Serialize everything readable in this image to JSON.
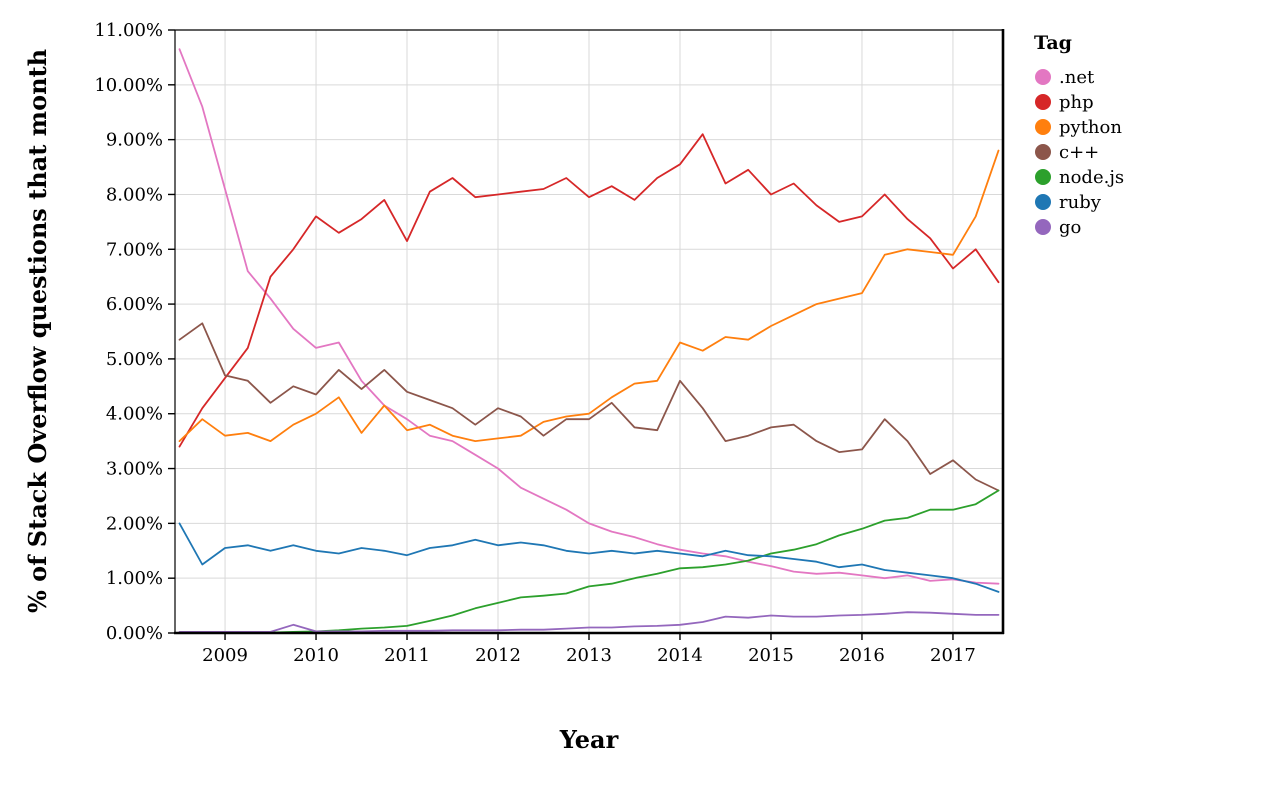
{
  "chart_data": {
    "type": "line",
    "title": "",
    "xlabel": "Year",
    "ylabel": "% of Stack Overflow questions that month",
    "legend_title": "Tag",
    "legend_position": "right",
    "grid": true,
    "xlim": [
      2008.45,
      2017.55
    ],
    "ylim": [
      0,
      11
    ],
    "x_ticks": [
      2009,
      2010,
      2011,
      2012,
      2013,
      2014,
      2015,
      2016,
      2017
    ],
    "x_tick_labels": [
      "2009",
      "2010",
      "2011",
      "2012",
      "2013",
      "2014",
      "2015",
      "2016",
      "2017"
    ],
    "y_ticks": [
      0,
      1,
      2,
      3,
      4,
      5,
      6,
      7,
      8,
      9,
      10,
      11
    ],
    "y_tick_labels": [
      "0.00%",
      "1.00%",
      "2.00%",
      "3.00%",
      "4.00%",
      "5.00%",
      "6.00%",
      "7.00%",
      "8.00%",
      "9.00%",
      "10.00%",
      "11.00%"
    ],
    "x": [
      2008.5,
      2008.75,
      2009.0,
      2009.25,
      2009.5,
      2009.75,
      2010.0,
      2010.25,
      2010.5,
      2010.75,
      2011.0,
      2011.25,
      2011.5,
      2011.75,
      2012.0,
      2012.25,
      2012.5,
      2012.75,
      2013.0,
      2013.25,
      2013.5,
      2013.75,
      2014.0,
      2014.25,
      2014.5,
      2014.75,
      2015.0,
      2015.25,
      2015.5,
      2015.75,
      2016.0,
      2016.25,
      2016.5,
      2016.75,
      2017.0,
      2017.25,
      2017.5
    ],
    "series": [
      {
        "name": ".net",
        "color": "#e377c2",
        "values": [
          10.65,
          9.6,
          8.1,
          6.6,
          6.1,
          5.55,
          5.2,
          5.3,
          4.6,
          4.15,
          3.9,
          3.6,
          3.5,
          3.25,
          3.0,
          2.65,
          2.45,
          2.25,
          2.0,
          1.85,
          1.75,
          1.62,
          1.52,
          1.45,
          1.4,
          1.3,
          1.22,
          1.12,
          1.08,
          1.1,
          1.05,
          1.0,
          1.05,
          0.95,
          0.98,
          0.92,
          0.9
        ]
      },
      {
        "name": "php",
        "color": "#d62728",
        "values": [
          3.4,
          4.1,
          4.65,
          5.2,
          6.5,
          7.0,
          7.6,
          7.3,
          7.55,
          7.9,
          7.15,
          8.05,
          8.3,
          7.95,
          8.0,
          8.05,
          8.1,
          8.3,
          7.95,
          8.15,
          7.9,
          8.3,
          8.55,
          9.1,
          8.2,
          8.45,
          8.0,
          8.2,
          7.8,
          7.5,
          7.6,
          8.0,
          7.55,
          7.2,
          6.65,
          7.0,
          6.4
        ]
      },
      {
        "name": "python",
        "color": "#ff7f0e",
        "values": [
          3.5,
          3.9,
          3.6,
          3.65,
          3.5,
          3.8,
          4.0,
          4.3,
          3.65,
          4.15,
          3.7,
          3.8,
          3.6,
          3.5,
          3.55,
          3.6,
          3.85,
          3.95,
          4.0,
          4.3,
          4.55,
          4.6,
          5.3,
          5.15,
          5.4,
          5.35,
          5.6,
          5.8,
          6.0,
          6.1,
          6.2,
          6.9,
          7.0,
          6.95,
          6.9,
          7.6,
          8.8
        ]
      },
      {
        "name": "c++",
        "color": "#8c564b",
        "values": [
          5.35,
          5.65,
          4.7,
          4.6,
          4.2,
          4.5,
          4.35,
          4.8,
          4.45,
          4.8,
          4.4,
          4.25,
          4.1,
          3.8,
          4.1,
          3.95,
          3.6,
          3.9,
          3.9,
          4.2,
          3.75,
          3.7,
          4.6,
          4.1,
          3.5,
          3.6,
          3.75,
          3.8,
          3.5,
          3.3,
          3.35,
          3.9,
          3.5,
          2.9,
          3.15,
          2.8,
          2.6
        ]
      },
      {
        "name": "node.js",
        "color": "#2ca02c",
        "values": [
          0.0,
          0.0,
          0.0,
          0.0,
          0.01,
          0.02,
          0.03,
          0.05,
          0.08,
          0.1,
          0.13,
          0.22,
          0.32,
          0.45,
          0.55,
          0.65,
          0.68,
          0.72,
          0.85,
          0.9,
          1.0,
          1.08,
          1.18,
          1.2,
          1.25,
          1.32,
          1.45,
          1.52,
          1.62,
          1.78,
          1.9,
          2.05,
          2.1,
          2.25,
          2.25,
          2.35,
          2.6
        ]
      },
      {
        "name": "ruby",
        "color": "#1f77b4",
        "values": [
          2.0,
          1.25,
          1.55,
          1.6,
          1.5,
          1.6,
          1.5,
          1.45,
          1.55,
          1.5,
          1.42,
          1.55,
          1.6,
          1.7,
          1.6,
          1.65,
          1.6,
          1.5,
          1.45,
          1.5,
          1.45,
          1.5,
          1.45,
          1.4,
          1.5,
          1.42,
          1.4,
          1.35,
          1.3,
          1.2,
          1.25,
          1.15,
          1.1,
          1.05,
          1.0,
          0.9,
          0.75
        ]
      },
      {
        "name": "go",
        "color": "#9467bd",
        "values": [
          0.02,
          0.02,
          0.02,
          0.02,
          0.02,
          0.15,
          0.03,
          0.03,
          0.03,
          0.04,
          0.04,
          0.04,
          0.05,
          0.05,
          0.05,
          0.06,
          0.06,
          0.08,
          0.1,
          0.1,
          0.12,
          0.13,
          0.15,
          0.2,
          0.3,
          0.28,
          0.32,
          0.3,
          0.3,
          0.32,
          0.33,
          0.35,
          0.38,
          0.37,
          0.35,
          0.33,
          0.33
        ]
      }
    ]
  }
}
